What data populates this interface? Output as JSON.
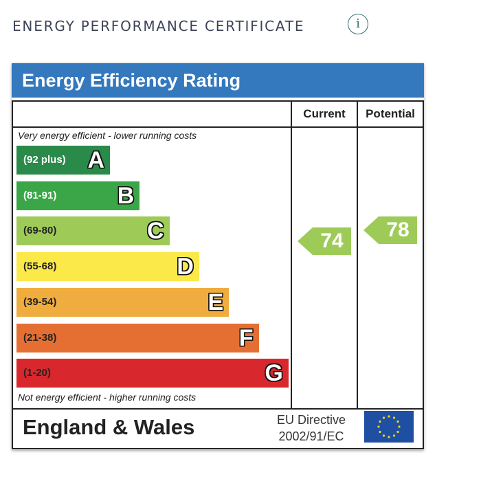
{
  "header": {
    "title": "ENERGY PERFORMANCE CERTIFICATE",
    "info_icon": "info-icon",
    "info_glyph": "i"
  },
  "chart_data": {
    "type": "table",
    "title": "Energy Efficiency Rating",
    "columns": [
      "Current",
      "Potential"
    ],
    "top_note": "Very energy efficient - lower running costs",
    "bottom_note": "Not energy efficient - higher running costs",
    "bands": [
      {
        "letter": "A",
        "range": "(92 plus)",
        "color": "#2a8a4a",
        "dark_text": false
      },
      {
        "letter": "B",
        "range": "(81-91)",
        "color": "#3aa647",
        "dark_text": false
      },
      {
        "letter": "C",
        "range": "(69-80)",
        "color": "#9ecb57",
        "dark_text": true
      },
      {
        "letter": "D",
        "range": "(55-68)",
        "color": "#fbe94a",
        "dark_text": true
      },
      {
        "letter": "E",
        "range": "(39-54)",
        "color": "#f0ad3f",
        "dark_text": true
      },
      {
        "letter": "F",
        "range": "(21-38)",
        "color": "#e56f32",
        "dark_text": true
      },
      {
        "letter": "G",
        "range": "(1-20)",
        "color": "#d8282d",
        "dark_text": true
      }
    ],
    "current": {
      "value": 74,
      "band": "C",
      "color": "#9ecb57"
    },
    "potential": {
      "value": 78,
      "band": "C",
      "color": "#9ecb57"
    }
  },
  "footer": {
    "region": "England & Wales",
    "directive_line1": "EU Directive",
    "directive_line2": "2002/91/EC",
    "flag_color": "#1f4fa3",
    "star_color": "#f4d41a"
  }
}
